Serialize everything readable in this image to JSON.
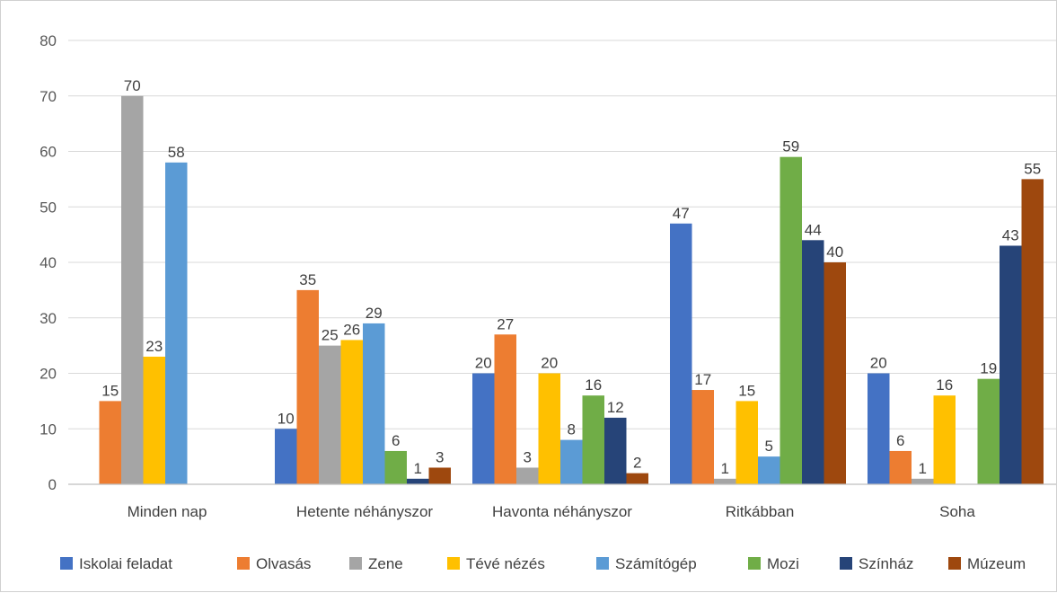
{
  "chart_data": {
    "type": "bar",
    "title": "",
    "xlabel": "",
    "ylabel": "",
    "ylim": [
      0,
      80
    ],
    "yticks": [
      0,
      10,
      20,
      30,
      40,
      50,
      60,
      70,
      80
    ],
    "grid": true,
    "legend_position": "bottom",
    "categories": [
      "Minden nap",
      "Hetente néhányszor",
      "Havonta néhányszor",
      "Ritkábban",
      "Soha"
    ],
    "series": [
      {
        "name": "Iskolai feladat",
        "color": "#4472C4",
        "values": [
          null,
          10,
          20,
          47,
          20
        ]
      },
      {
        "name": "Olvasás",
        "color": "#ED7D31",
        "values": [
          15,
          35,
          27,
          17,
          6
        ]
      },
      {
        "name": "Zene",
        "color": "#A5A5A5",
        "values": [
          70,
          25,
          3,
          1,
          1
        ]
      },
      {
        "name": "Tévé nézés",
        "color": "#FFC000",
        "values": [
          23,
          26,
          20,
          15,
          16
        ]
      },
      {
        "name": "Számítógép",
        "color": "#5B9BD5",
        "values": [
          58,
          29,
          8,
          5,
          null
        ]
      },
      {
        "name": "Mozi",
        "color": "#70AD47",
        "values": [
          null,
          6,
          16,
          59,
          19
        ]
      },
      {
        "name": "Színház",
        "color": "#264478",
        "values": [
          null,
          1,
          12,
          44,
          43
        ]
      },
      {
        "name": "Múzeum",
        "color": "#9E480E",
        "values": [
          null,
          3,
          2,
          40,
          55
        ]
      }
    ]
  }
}
